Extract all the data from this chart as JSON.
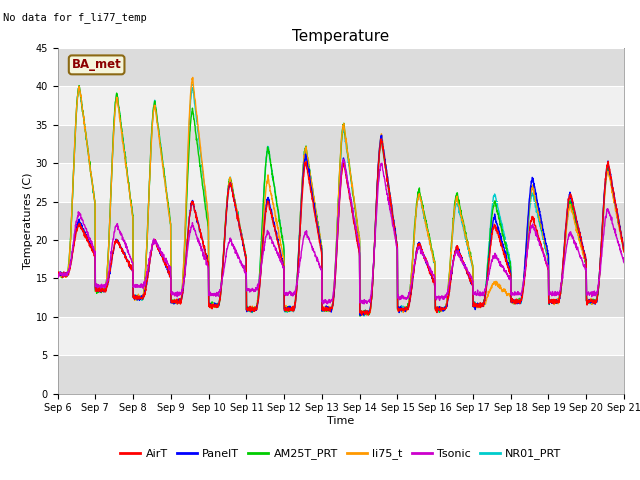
{
  "title": "Temperature",
  "xlabel": "Time",
  "ylabel": "Temperatures (C)",
  "no_data_text": "No data for f_li77_temp",
  "label_text": "BA_met",
  "ylim": [
    0,
    45
  ],
  "yticks": [
    0,
    5,
    10,
    15,
    20,
    25,
    30,
    35,
    40,
    45
  ],
  "xtick_labels": [
    "Sep 6",
    "Sep 7",
    "Sep 8",
    "Sep 9",
    "Sep 10",
    "Sep 11",
    "Sep 12",
    "Sep 13",
    "Sep 14",
    "Sep 15",
    "Sep 16",
    "Sep 17",
    "Sep 18",
    "Sep 19",
    "Sep 20",
    "Sep 21"
  ],
  "legend_entries": [
    "AirT",
    "PanelT",
    "AM25T_PRT",
    "li75_t",
    "Tsonic",
    "NR01_PRT"
  ],
  "legend_colors": [
    "#ff0000",
    "#0000ff",
    "#00cc00",
    "#ff9900",
    "#cc00cc",
    "#00cccc"
  ],
  "fig_bg_color": "#ffffff",
  "plot_bg_light": "#f0f0f0",
  "plot_bg_dark": "#dcdcdc",
  "n_days": 15,
  "pts_per_day": 144,
  "daily_min": [
    15.5,
    13.5,
    12.5,
    12.0,
    11.5,
    11.0,
    11.0,
    11.0,
    10.5,
    11.0,
    11.0,
    11.5,
    12.0,
    12.0,
    12.0
  ],
  "daily_max_airT": [
    22.0,
    20.0,
    20.0,
    25.0,
    27.5,
    25.0,
    30.0,
    30.0,
    33.0,
    19.5,
    19.0,
    22.0,
    23.0,
    26.0,
    30.0
  ],
  "daily_max_panelT": [
    22.5,
    20.0,
    20.0,
    25.0,
    27.5,
    25.5,
    31.0,
    30.5,
    33.5,
    19.5,
    19.0,
    23.0,
    28.0,
    26.0,
    30.0
  ],
  "daily_max_AM25": [
    40.0,
    39.0,
    38.0,
    37.0,
    28.0,
    32.0,
    32.0,
    35.0,
    33.0,
    26.5,
    26.0,
    25.0,
    27.0,
    25.0,
    29.5
  ],
  "daily_max_li75": [
    40.0,
    38.5,
    37.5,
    41.0,
    28.0,
    28.0,
    32.0,
    35.0,
    33.5,
    26.0,
    25.5,
    14.5,
    27.0,
    24.5,
    29.0
  ],
  "daily_max_tsonic": [
    23.5,
    22.0,
    20.0,
    22.0,
    20.0,
    21.0,
    21.0,
    30.5,
    30.0,
    19.0,
    18.5,
    18.0,
    22.0,
    21.0,
    24.0
  ],
  "daily_max_NR01": [
    40.0,
    39.0,
    38.0,
    40.0,
    28.0,
    32.0,
    32.0,
    34.5,
    33.0,
    26.0,
    25.0,
    26.0,
    26.0,
    25.0,
    29.5
  ],
  "tsonic_min": [
    15.5,
    14.0,
    14.0,
    13.0,
    13.0,
    13.5,
    13.0,
    12.0,
    12.0,
    12.5,
    12.5,
    13.0,
    13.0,
    13.0,
    13.0
  ],
  "title_fontsize": 11,
  "axis_fontsize": 8,
  "tick_fontsize": 7
}
